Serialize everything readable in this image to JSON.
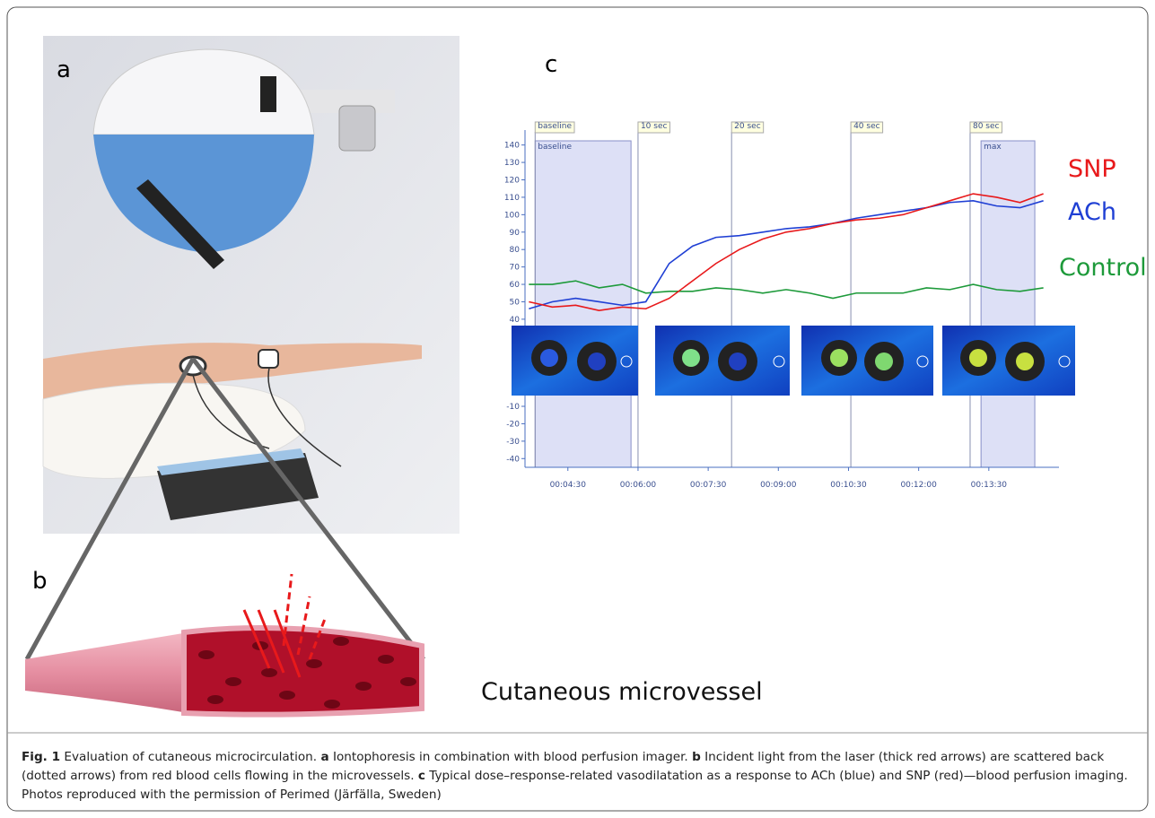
{
  "panel_labels": {
    "a": "a",
    "b": "b",
    "c": "c"
  },
  "vessel_label": "Cutaneous microvessel",
  "chart_data": {
    "type": "line",
    "x": [
      220,
      250,
      280,
      310,
      340,
      370,
      400,
      430,
      460,
      490,
      520,
      550,
      580,
      610,
      640,
      670,
      700,
      730,
      760,
      790,
      820,
      850,
      880
    ],
    "series": [
      {
        "name": "SNP",
        "color": "#e8191b",
        "values": [
          50,
          47,
          48,
          45,
          47,
          46,
          52,
          62,
          72,
          80,
          86,
          90,
          92,
          95,
          97,
          98,
          100,
          104,
          108,
          112,
          110,
          107,
          112
        ]
      },
      {
        "name": "ACh",
        "color": "#1f3fd4",
        "values": [
          46,
          50,
          52,
          50,
          48,
          50,
          72,
          82,
          87,
          88,
          90,
          92,
          93,
          95,
          98,
          100,
          102,
          104,
          107,
          108,
          105,
          104,
          108
        ]
      },
      {
        "name": "Control",
        "color": "#1d9a3a",
        "values": [
          60,
          60,
          62,
          58,
          60,
          55,
          56,
          56,
          58,
          57,
          55,
          57,
          55,
          52,
          55,
          55,
          55,
          58,
          57,
          60,
          57,
          56,
          58
        ]
      }
    ],
    "xlim": [
      215,
      900
    ],
    "ylim": [
      -45,
      146
    ],
    "xticks": [
      {
        "value": 270,
        "label": "00:04:30"
      },
      {
        "value": 360,
        "label": "00:06:00"
      },
      {
        "value": 450,
        "label": "00:07:30"
      },
      {
        "value": 540,
        "label": "00:09:00"
      },
      {
        "value": 630,
        "label": "00:10:30"
      },
      {
        "value": 720,
        "label": "00:12:00"
      },
      {
        "value": 810,
        "label": "00:13:30"
      }
    ],
    "yticks": [
      140,
      130,
      120,
      110,
      100,
      90,
      80,
      70,
      60,
      50,
      40,
      -10,
      -20,
      -30,
      -40
    ],
    "markers": [
      {
        "x": 228,
        "label": "baseline"
      },
      {
        "x": 360,
        "label": "10 sec"
      },
      {
        "x": 480,
        "label": "20 sec"
      },
      {
        "x": 633,
        "label": "40 sec"
      },
      {
        "x": 786,
        "label": "80 sec"
      }
    ],
    "regions": [
      {
        "x": [
          228,
          351
        ],
        "label": "baseline"
      },
      {
        "x": [
          800,
          869
        ],
        "label": "max"
      }
    ]
  },
  "caption": [
    "Fig. 1",
    "Evaluation of cutaneous microcirculation.",
    "a",
    "Iontophoresis in combination with blood perfusion imager.",
    "b",
    "Incident light from the laser (thick red arrows) are scattered back (dotted arrows) from red blood cells flowing in the microvessels.",
    "c",
    "Typical dose–response-related vasodilatation as a response to ACh (blue) and SNP (red)—blood perfusion imaging. Photos reproduced with the permission of Perimed (Järfälla, Sweden)"
  ]
}
